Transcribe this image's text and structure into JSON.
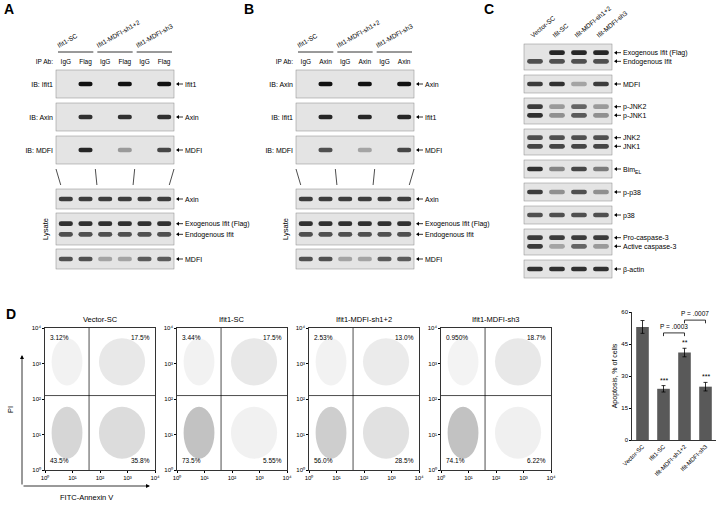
{
  "blots": [
    {
      "letter": "A",
      "groups": [
        "Ifit1-SC",
        "Ifit1-MDFI-sh1+2",
        "Ifit1-MDFI-sh3"
      ],
      "ip_label": "IP Ab:",
      "lanes": [
        "IgG",
        "Flag",
        "IgG",
        "Flag",
        "IgG",
        "Flag"
      ],
      "ip_rows": [
        {
          "label": "IB: Ifit1",
          "bands": [
            {
              "name": "Ifit1",
              "intensity": [
                0,
                1,
                0,
                1,
                0,
                1
              ]
            }
          ]
        },
        {
          "label": "IB: Axin",
          "bands": [
            {
              "name": "Axin",
              "intensity": [
                0,
                0.85,
                0,
                0.85,
                0,
                0.85
              ]
            }
          ]
        },
        {
          "label": "IB: MDFI",
          "bands": [
            {
              "name": "MDFI",
              "intensity": [
                0,
                0.9,
                0,
                0.35,
                0,
                0.75
              ]
            }
          ]
        }
      ],
      "lysate_label": "Lysate",
      "lysate_rows": [
        {
          "bands": [
            {
              "name": "Axin",
              "intensity": [
                0.8,
                0.8,
                0.8,
                0.8,
                0.8,
                0.8
              ]
            }
          ]
        },
        {
          "bands": [
            {
              "name": "Exogenous Ifit (Flag)",
              "intensity": [
                0.85,
                0.85,
                0.85,
                0.85,
                0.85,
                0.85
              ]
            },
            {
              "name": "Endogenous Ifit",
              "intensity": [
                0.7,
                0.7,
                0.7,
                0.7,
                0.7,
                0.7
              ]
            }
          ]
        },
        {
          "bands": [
            {
              "name": "MDFI",
              "intensity": [
                0.7,
                0.7,
                0.3,
                0.3,
                0.65,
                0.65
              ]
            }
          ]
        }
      ]
    },
    {
      "letter": "B",
      "groups": [
        "Ifit1-SC",
        "Ifit1-MDFI-sh1+2",
        "Ifit1-MDFI-sh3"
      ],
      "ip_label": "IP Ab:",
      "lanes": [
        "IgG",
        "Axin",
        "IgG",
        "Axin",
        "IgG",
        "Axin"
      ],
      "ip_rows": [
        {
          "label": "IB: Axin",
          "bands": [
            {
              "name": "Axin",
              "intensity": [
                0,
                1,
                0,
                1,
                0,
                1
              ]
            }
          ]
        },
        {
          "label": "IB: Ifit1",
          "bands": [
            {
              "name": "Ifit1",
              "intensity": [
                0,
                0.9,
                0,
                0.9,
                0,
                0.9
              ]
            }
          ]
        },
        {
          "label": "IB: MDFI",
          "bands": [
            {
              "name": "MDFI",
              "intensity": [
                0,
                0.7,
                0,
                0.3,
                0,
                0.75
              ]
            }
          ]
        }
      ],
      "lysate_label": "Lysate",
      "lysate_rows": [
        {
          "bands": [
            {
              "name": "Axin",
              "intensity": [
                0.8,
                0.8,
                0.8,
                0.8,
                0.8,
                0.8
              ]
            }
          ]
        },
        {
          "bands": [
            {
              "name": "Exogenous Ifit (Flag)",
              "intensity": [
                0.85,
                0.85,
                0.85,
                0.85,
                0.85,
                0.85
              ]
            },
            {
              "name": "Endogenous Ifit",
              "intensity": [
                0.7,
                0.7,
                0.7,
                0.7,
                0.7,
                0.7
              ]
            }
          ]
        },
        {
          "bands": [
            {
              "name": "MDFI",
              "intensity": [
                0.7,
                0.7,
                0.3,
                0.3,
                0.65,
                0.65
              ]
            }
          ]
        }
      ]
    }
  ],
  "blot_C": {
    "letter": "C",
    "lanes": [
      "Vector-SC",
      "Ifit-SC",
      "Ifit-MDFI-sh1+2",
      "Ifit-MDFI-sh3"
    ],
    "rows": [
      {
        "bands": [
          {
            "name": "Exogenous Ifit (Flag)",
            "intensity": [
              0,
              0.9,
              0.9,
              0.9
            ]
          },
          {
            "name": "Endogenous Ifit",
            "intensity": [
              0.7,
              0.7,
              0.7,
              0.7
            ]
          }
        ]
      },
      {
        "bands": [
          {
            "name": "MDFI",
            "intensity": [
              0.8,
              0.85,
              0.3,
              0.8
            ]
          }
        ]
      },
      {
        "bands": [
          {
            "name": "p-JNK2",
            "intensity": [
              0.8,
              0.35,
              0.6,
              0.35
            ]
          },
          {
            "name": "p-JNK1",
            "intensity": [
              0.85,
              0.4,
              0.65,
              0.4
            ]
          }
        ]
      },
      {
        "bands": [
          {
            "name": "JNK2",
            "intensity": [
              0.7,
              0.7,
              0.7,
              0.7
            ]
          },
          {
            "name": "JNK1",
            "intensity": [
              0.75,
              0.75,
              0.75,
              0.75
            ]
          }
        ]
      },
      {
        "bands": [
          {
            "name": "Bim",
            "subscript": "EL",
            "intensity": [
              0.85,
              0.45,
              0.75,
              0.5
            ]
          }
        ]
      },
      {
        "bands": [
          {
            "name": "p-p38",
            "intensity": [
              0.8,
              0.4,
              0.7,
              0.4
            ]
          }
        ]
      },
      {
        "bands": [
          {
            "name": "p38",
            "intensity": [
              0.7,
              0.7,
              0.7,
              0.7
            ]
          }
        ]
      },
      {
        "bands": [
          {
            "name": "Pro-caspase-3",
            "intensity": [
              0.8,
              0.8,
              0.8,
              0.8
            ]
          },
          {
            "name": "Active caspase-3",
            "intensity": [
              0.8,
              0.3,
              0.6,
              0.35
            ]
          }
        ]
      },
      {
        "bands": [
          {
            "name": "β-actin",
            "intensity": [
              0.85,
              0.85,
              0.85,
              0.85
            ]
          }
        ]
      }
    ]
  },
  "flow_cytometry": {
    "letter": "D",
    "x_label": "FITC-Annexin V",
    "y_label": "PI",
    "log": true,
    "grid": false,
    "xlim": [
      1,
      10000
    ],
    "ylim": [
      1,
      10000
    ],
    "xticks": [
      {
        "value": 1,
        "label": "10⁰"
      },
      {
        "value": 10,
        "label": "10¹"
      },
      {
        "value": 100,
        "label": "10²"
      },
      {
        "value": 1000,
        "label": "10³"
      },
      {
        "value": 10000,
        "label": "10⁴"
      }
    ],
    "yticks": [
      {
        "value": 1,
        "label": "10⁰"
      },
      {
        "value": 10,
        "label": "10¹"
      },
      {
        "value": 100,
        "label": "10²"
      },
      {
        "value": 1000,
        "label": "10³"
      },
      {
        "value": 10000,
        "label": "10⁴"
      }
    ],
    "gate": {
      "x": 40,
      "y": 125
    },
    "plots": [
      {
        "title": "Vector-SC",
        "quadrant_values": [
          3.12,
          17.5,
          43.5,
          35.8
        ],
        "quadrant_labels": [
          "3.12%",
          "17.5%",
          "43.5%",
          "35.8%"
        ]
      },
      {
        "title": "Ifit1-SC",
        "quadrant_values": [
          3.44,
          17.5,
          73.5,
          5.55
        ],
        "quadrant_labels": [
          "3.44%",
          "17.5%",
          "73.5%",
          "5.55%"
        ]
      },
      {
        "title": "Ifit1-MDFI-sh1+2",
        "quadrant_values": [
          2.53,
          13.0,
          56.0,
          28.5
        ],
        "quadrant_labels": [
          "2.53%",
          "13.0%",
          "56.0%",
          "28.5%"
        ]
      },
      {
        "title": "Ifit1-MDFI-sh3",
        "quadrant_values": [
          0.95,
          18.7,
          74.1,
          6.22
        ],
        "quadrant_labels": [
          "0.950%",
          "18.7%",
          "74.1%",
          "6.22%"
        ]
      }
    ]
  },
  "chart_data": {
    "type": "bar",
    "categories": [
      "Vector-SC",
      "Ifit1-SC",
      "Ifit-MDFI-sh1+2",
      "Ifit-MDFI-sh3"
    ],
    "values": [
      53,
      24,
      41,
      25
    ],
    "errors": [
      3,
      1.5,
      2,
      2
    ],
    "color": "#595959",
    "y_label": "Apoptosis, % of cells",
    "ylim": [
      0,
      60
    ],
    "yticks": [
      0,
      15,
      30,
      45,
      60
    ],
    "grid": false,
    "significance": [
      null,
      "***",
      "**",
      "***"
    ],
    "comparisons": [
      {
        "between": [
          "Ifit1-SC",
          "Ifit-MDFI-sh1+2"
        ],
        "label": "P = .0003"
      },
      {
        "between": [
          "Ifit-MDFI-sh1+2",
          "Ifit-MDFI-sh3"
        ],
        "label": "P = .0007"
      }
    ]
  }
}
